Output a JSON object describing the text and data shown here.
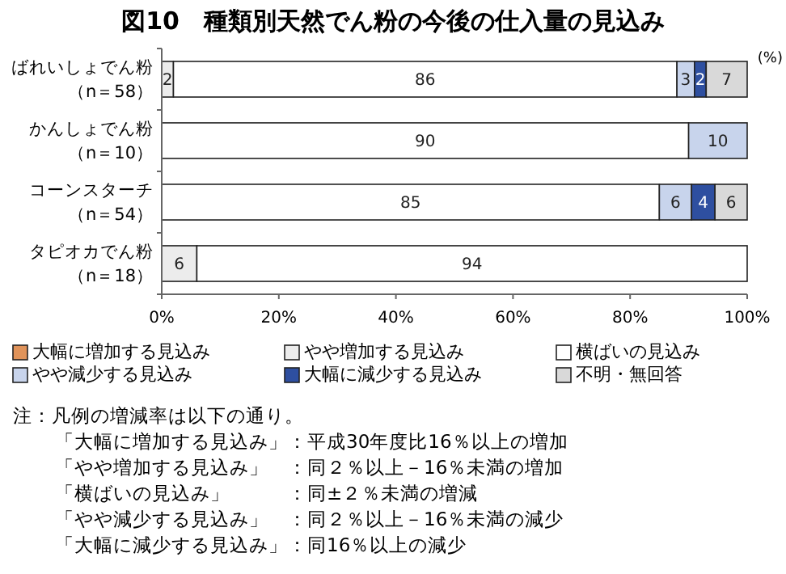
{
  "chart_data": {
    "type": "bar",
    "orientation": "horizontal",
    "stacked": true,
    "title": "図10　種類別天然でん粉の今後の仕入量の見込み",
    "categories": [
      "ばれいしょでん粉（n＝58）",
      "かんしょでん粉（n＝10）",
      "コーンスターチ（n＝54）",
      "タピオカでん粉（n＝18）"
    ],
    "series": [
      {
        "name": "大幅に増加する見込み",
        "color": "#e0935a",
        "values": [
          null,
          null,
          null,
          null
        ],
        "value_labels": [
          null,
          null,
          null,
          null
        ]
      },
      {
        "name": "やや増加する見込み",
        "color": "#ececec",
        "values": [
          2,
          null,
          null,
          6
        ],
        "value_labels": [
          "2",
          null,
          null,
          "6"
        ]
      },
      {
        "name": "横ばいの見込み",
        "color": "#ffffff",
        "values": [
          86,
          90,
          85,
          94
        ],
        "value_labels": [
          "86",
          "90",
          "85",
          "94"
        ]
      },
      {
        "name": "やや減少する見込み",
        "color": "#c8d4ec",
        "values": [
          3,
          10,
          5.5,
          null
        ],
        "value_labels": [
          "3",
          "10",
          "6",
          null
        ]
      },
      {
        "name": "大幅に減少する見込み",
        "color": "#2e4fa0",
        "values": [
          2,
          null,
          4,
          null
        ],
        "value_labels": [
          "2",
          null,
          "4",
          null
        ]
      },
      {
        "name": "不明・無回答",
        "color": "#d9d9d9",
        "values": [
          7,
          null,
          5.5,
          null
        ],
        "value_labels": [
          "7",
          null,
          "6",
          null
        ]
      }
    ],
    "xlim": [
      0,
      100
    ],
    "xticks": [
      {
        "value": 0,
        "label": "0%"
      },
      {
        "value": 20,
        "label": "20%"
      },
      {
        "value": 40,
        "label": "40%"
      },
      {
        "value": 60,
        "label": "60%"
      },
      {
        "value": 80,
        "label": "80%"
      },
      {
        "value": 100,
        "label": "100%"
      }
    ],
    "grid": false,
    "legend": "bottom",
    "annotations": [
      "(%)",
      "注：凡例の増減率は以下の通り。",
      "「大幅に増加する見込み」：平成30年度比16％以上の増加",
      "「やや増加する見込み」　：同２％以上－16％未満の増加",
      "「横ばいの見込み」　　　：同±２％未満の増減",
      "「やや減少する見込み」　：同２％以上－16％未満の減少",
      "「大幅に減少する見込み」：同16％以上の減少"
    ]
  }
}
